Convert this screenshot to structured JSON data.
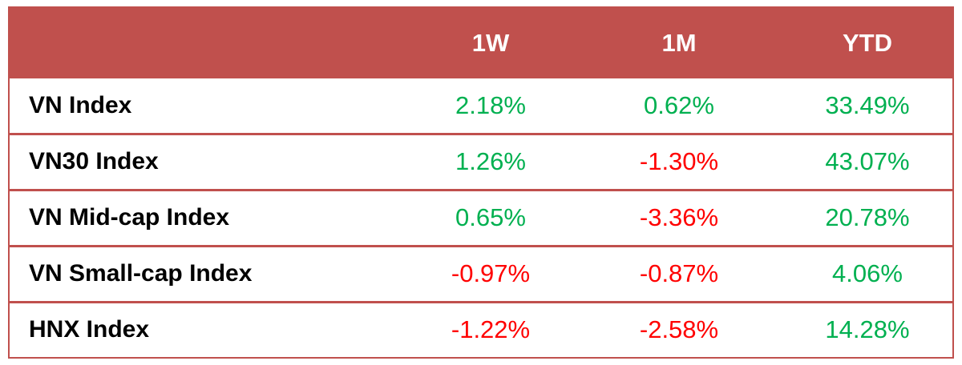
{
  "colors": {
    "header_bg": "#c0504d",
    "positive": "#00b050",
    "negative": "#ff0000"
  },
  "chart_data": {
    "type": "table",
    "columns": [
      "1W",
      "1M",
      "YTD"
    ],
    "rows": [
      {
        "label": "VN Index",
        "values": [
          "2.18%",
          "0.62%",
          "33.49%"
        ]
      },
      {
        "label": "VN30 Index",
        "values": [
          "1.26%",
          "-1.30%",
          "43.07%"
        ]
      },
      {
        "label": "VN Mid-cap Index",
        "values": [
          "0.65%",
          "-3.36%",
          "20.78%"
        ]
      },
      {
        "label": "VN Small-cap Index",
        "values": [
          "-0.97%",
          "-0.87%",
          "4.06%"
        ]
      },
      {
        "label": "HNX Index",
        "values": [
          "-1.22%",
          "-2.58%",
          "14.28%"
        ]
      }
    ]
  }
}
